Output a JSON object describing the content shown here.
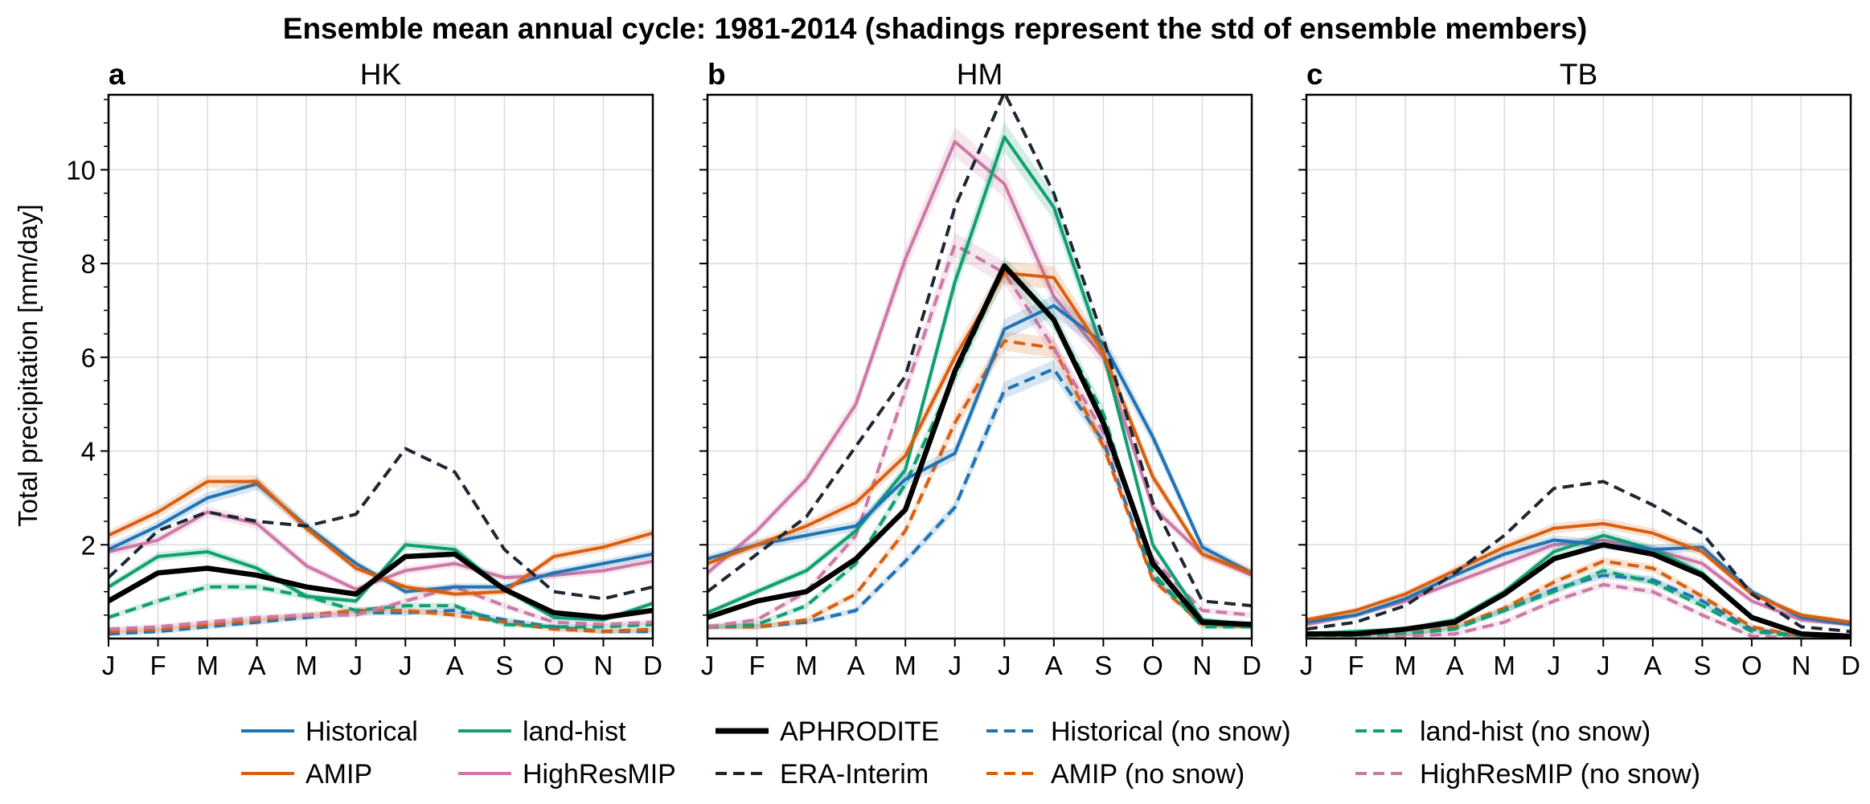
{
  "title": "Ensemble mean annual cycle: 1981-2014 (shadings represent the std of ensemble members)",
  "ylabel": "Total precipitation [mm/day]",
  "colors": {
    "Historical": "#1f74b4",
    "AMIP": "#d95f0e",
    "land-hist": "#109e73",
    "HighResMIP": "#cc79a7",
    "APHRODITE": "#000000",
    "ERA-Interim": "#1e2633"
  },
  "legend": [
    {
      "name": "Historical",
      "color": "Historical",
      "dash": false,
      "width": 4
    },
    {
      "name": "AMIP",
      "color": "AMIP",
      "dash": false,
      "width": 4
    },
    {
      "name": "land-hist",
      "color": "land-hist",
      "dash": false,
      "width": 4
    },
    {
      "name": "HighResMIP",
      "color": "HighResMIP",
      "dash": false,
      "width": 4
    },
    {
      "name": "APHRODITE",
      "color": "APHRODITE",
      "dash": false,
      "width": 7
    },
    {
      "name": "ERA-Interim",
      "color": "ERA-Interim",
      "dash": true,
      "width": 4
    },
    {
      "name": "Historical (no snow)",
      "color": "Historical",
      "dash": true,
      "width": 4
    },
    {
      "name": "AMIP (no snow)",
      "color": "AMIP",
      "dash": true,
      "width": 4
    },
    {
      "name": "land-hist (no snow)",
      "color": "land-hist",
      "dash": true,
      "width": 4
    },
    {
      "name": "HighResMIP (no snow)",
      "color": "HighResMIP",
      "dash": true,
      "width": 4
    }
  ],
  "chart_data": [
    {
      "type": "line",
      "letter": "a",
      "title": "HK",
      "categories": [
        "J",
        "F",
        "M",
        "A",
        "M",
        "J",
        "J",
        "A",
        "S",
        "O",
        "N",
        "D"
      ],
      "ylim": [
        0,
        11.6
      ],
      "yticks": [
        2,
        4,
        6,
        8,
        10
      ],
      "grid": true,
      "series": [
        {
          "name": "Historical",
          "values": [
            1.9,
            2.4,
            3.0,
            3.3,
            2.4,
            1.6,
            1.0,
            1.1,
            1.1,
            1.4,
            1.6,
            1.8
          ]
        },
        {
          "name": "AMIP",
          "values": [
            2.2,
            2.7,
            3.35,
            3.35,
            2.35,
            1.5,
            1.1,
            0.95,
            1.0,
            1.75,
            1.95,
            2.25
          ]
        },
        {
          "name": "land-hist",
          "values": [
            1.1,
            1.75,
            1.85,
            1.5,
            0.9,
            0.8,
            2.0,
            1.9,
            1.05,
            0.45,
            0.4,
            0.75
          ]
        },
        {
          "name": "HighResMIP",
          "values": [
            1.85,
            2.1,
            2.7,
            2.45,
            1.55,
            1.05,
            1.45,
            1.6,
            1.3,
            1.35,
            1.45,
            1.65
          ]
        },
        {
          "name": "APHRODITE",
          "values": [
            0.8,
            1.4,
            1.5,
            1.35,
            1.1,
            0.95,
            1.75,
            1.8,
            1.05,
            0.55,
            0.45,
            0.6
          ]
        },
        {
          "name": "ERA-Interim",
          "values": [
            1.3,
            2.3,
            2.7,
            2.5,
            2.4,
            2.65,
            4.05,
            3.55,
            1.9,
            1.0,
            0.85,
            1.1
          ]
        },
        {
          "name": "Historical (no snow)",
          "values": [
            0.1,
            0.15,
            0.25,
            0.35,
            0.45,
            0.55,
            0.55,
            0.6,
            0.4,
            0.25,
            0.15,
            0.15
          ]
        },
        {
          "name": "AMIP (no snow)",
          "values": [
            0.15,
            0.2,
            0.3,
            0.4,
            0.5,
            0.6,
            0.6,
            0.5,
            0.35,
            0.2,
            0.15,
            0.2
          ]
        },
        {
          "name": "land-hist (no snow)",
          "values": [
            0.45,
            0.8,
            1.1,
            1.1,
            0.9,
            0.6,
            0.7,
            0.7,
            0.3,
            0.25,
            0.25,
            0.3
          ]
        },
        {
          "name": "HighResMIP (no snow)",
          "values": [
            0.2,
            0.25,
            0.35,
            0.45,
            0.5,
            0.5,
            0.8,
            1.1,
            0.7,
            0.35,
            0.3,
            0.35
          ]
        }
      ]
    },
    {
      "type": "line",
      "letter": "b",
      "title": "HM",
      "categories": [
        "J",
        "F",
        "M",
        "A",
        "M",
        "J",
        "J",
        "A",
        "S",
        "O",
        "N",
        "D"
      ],
      "ylim": [
        0,
        11.6
      ],
      "yticks": [
        2,
        4,
        6,
        8,
        10
      ],
      "grid": true,
      "series": [
        {
          "name": "Historical",
          "values": [
            1.7,
            2.0,
            2.2,
            2.4,
            3.4,
            3.95,
            6.6,
            7.1,
            6.3,
            4.3,
            1.95,
            1.4
          ]
        },
        {
          "name": "AMIP",
          "values": [
            1.6,
            2.0,
            2.4,
            2.9,
            3.9,
            6.0,
            7.8,
            7.7,
            6.1,
            3.45,
            1.8,
            1.4
          ]
        },
        {
          "name": "land-hist",
          "values": [
            0.55,
            1.0,
            1.45,
            2.3,
            3.6,
            7.6,
            10.7,
            9.2,
            6.1,
            2.0,
            0.4,
            0.3
          ]
        },
        {
          "name": "HighResMIP",
          "values": [
            1.4,
            2.3,
            3.4,
            5.0,
            8.1,
            10.6,
            9.7,
            7.3,
            6.0,
            2.8,
            1.8,
            1.35
          ]
        },
        {
          "name": "APHRODITE",
          "values": [
            0.45,
            0.8,
            1.0,
            1.7,
            2.75,
            5.7,
            7.95,
            6.8,
            4.6,
            1.6,
            0.35,
            0.3
          ]
        },
        {
          "name": "ERA-Interim",
          "values": [
            1.0,
            1.8,
            2.6,
            4.1,
            5.6,
            9.2,
            11.65,
            9.5,
            6.4,
            2.9,
            0.8,
            0.7
          ]
        },
        {
          "name": "Historical (no snow)",
          "values": [
            0.25,
            0.25,
            0.35,
            0.6,
            1.65,
            2.8,
            5.3,
            5.75,
            4.2,
            1.3,
            0.35,
            0.3
          ]
        },
        {
          "name": "AMIP (no snow)",
          "values": [
            0.25,
            0.25,
            0.4,
            0.95,
            2.3,
            4.6,
            6.35,
            6.2,
            4.1,
            1.25,
            0.3,
            0.25
          ]
        },
        {
          "name": "land-hist (no snow)",
          "values": [
            0.25,
            0.3,
            0.7,
            1.6,
            3.3,
            5.6,
            7.9,
            6.8,
            4.8,
            1.4,
            0.25,
            0.25
          ]
        },
        {
          "name": "HighResMIP (no snow)",
          "values": [
            0.25,
            0.4,
            1.0,
            2.2,
            5.3,
            8.4,
            7.8,
            6.2,
            4.4,
            1.7,
            0.6,
            0.5
          ]
        }
      ]
    },
    {
      "type": "line",
      "letter": "c",
      "title": "TB",
      "categories": [
        "J",
        "F",
        "M",
        "A",
        "M",
        "J",
        "J",
        "A",
        "S",
        "O",
        "N",
        "D"
      ],
      "ylim": [
        0,
        11.6
      ],
      "yticks": [
        2,
        4,
        6,
        8,
        10
      ],
      "grid": true,
      "series": [
        {
          "name": "Historical",
          "values": [
            0.35,
            0.5,
            0.85,
            1.35,
            1.8,
            2.1,
            2.0,
            1.9,
            1.95,
            1.0,
            0.45,
            0.3
          ]
        },
        {
          "name": "AMIP",
          "values": [
            0.4,
            0.6,
            0.95,
            1.45,
            1.95,
            2.35,
            2.45,
            2.25,
            1.85,
            0.95,
            0.5,
            0.35
          ]
        },
        {
          "name": "land-hist",
          "values": [
            0.1,
            0.15,
            0.2,
            0.4,
            1.0,
            1.85,
            2.2,
            1.9,
            1.4,
            0.45,
            0.1,
            0.05
          ]
        },
        {
          "name": "HighResMIP",
          "values": [
            0.3,
            0.5,
            0.8,
            1.2,
            1.6,
            2.0,
            2.1,
            1.9,
            1.6,
            0.8,
            0.4,
            0.3
          ]
        },
        {
          "name": "APHRODITE",
          "values": [
            0.1,
            0.1,
            0.2,
            0.35,
            0.95,
            1.7,
            2.0,
            1.8,
            1.35,
            0.45,
            0.1,
            0.05
          ]
        },
        {
          "name": "ERA-Interim",
          "values": [
            0.2,
            0.35,
            0.7,
            1.4,
            2.2,
            3.2,
            3.35,
            2.85,
            2.25,
            0.95,
            0.25,
            0.15
          ]
        },
        {
          "name": "Historical (no snow)",
          "values": [
            0.05,
            0.05,
            0.1,
            0.25,
            0.6,
            1.05,
            1.35,
            1.25,
            0.8,
            0.2,
            0.05,
            0.05
          ]
        },
        {
          "name": "AMIP (no snow)",
          "values": [
            0.05,
            0.05,
            0.1,
            0.25,
            0.65,
            1.2,
            1.65,
            1.5,
            0.9,
            0.25,
            0.05,
            0.05
          ]
        },
        {
          "name": "land-hist (no snow)",
          "values": [
            0.05,
            0.05,
            0.1,
            0.2,
            0.6,
            1.0,
            1.45,
            1.2,
            0.7,
            0.15,
            0.05,
            0.05
          ]
        },
        {
          "name": "HighResMIP (no snow)",
          "values": [
            0.0,
            0.0,
            0.05,
            0.1,
            0.35,
            0.8,
            1.15,
            1.0,
            0.5,
            0.05,
            0.0,
            0.0
          ]
        }
      ]
    }
  ]
}
